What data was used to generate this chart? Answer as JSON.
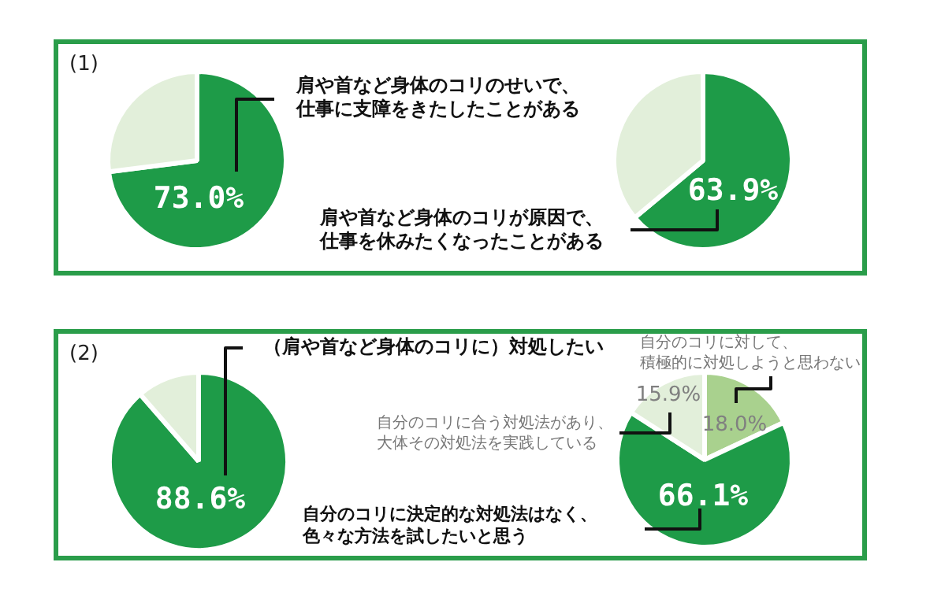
{
  "chart_data": [
    {
      "type": "pie",
      "title": "(1)",
      "categories": [
        "肩や首など身体のコリのせいで、仕事に支障をきたしたことがある",
        null
      ],
      "values": [
        73.0,
        27.0
      ],
      "colors": [
        "#1e9b48",
        "#e2efda"
      ],
      "value_labels": [
        "73.0%",
        null
      ]
    },
    {
      "type": "pie",
      "categories": [
        "肩や首など身体のコリが原因で、仕事を休みたくなったことがある",
        null
      ],
      "values": [
        63.9,
        36.1
      ],
      "colors": [
        "#1e9b48",
        "#e2efda"
      ],
      "value_labels": [
        "63.9%",
        null
      ]
    },
    {
      "type": "pie",
      "title": "(2)",
      "categories": [
        "（肩や首など身体のコリに）対処したい",
        null
      ],
      "values": [
        88.6,
        11.4
      ],
      "colors": [
        "#1e9b48",
        "#e2efda"
      ],
      "value_labels": [
        "88.6%",
        null
      ]
    },
    {
      "type": "pie",
      "categories": [
        "自分のコリに対して、積極的に対処しようと思わない",
        "自分のコリに決定的な対処法はなく、色々な方法を試したいと思う",
        "自分のコリに合う対処法があり、大体その対処法を実践している"
      ],
      "values": [
        18.0,
        66.1,
        15.9
      ],
      "colors": [
        "#a9d18e",
        "#1e9b48",
        "#e2efda"
      ],
      "value_labels": [
        "18.0%",
        "66.1%",
        "15.9%"
      ]
    }
  ]
}
